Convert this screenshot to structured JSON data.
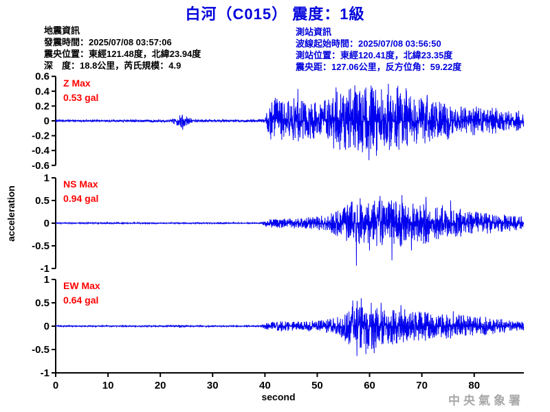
{
  "title": "白河（C015） 震度：1級",
  "colors": {
    "title": "#0000dd",
    "trace": "#0000ee",
    "max_label": "#ff0000",
    "axis": "#000000",
    "info_left": "#000000",
    "info_right": "#0000dd",
    "watermark": "#a8a8a8"
  },
  "event_info": {
    "heading": "地震資訊",
    "lines": [
      "發震時間：2025/07/08 03:57:06",
      "震央位置：東經121.48度，北緯23.94度",
      "深　度：18.8公里，芮氏規模：4.9"
    ]
  },
  "station_info": {
    "heading": "測站資訊",
    "lines": [
      "波線起始時間：2025/07/08 03:56:50",
      "測站位置：東經120.41度，北緯23.35度",
      "震央距：127.06公里，反方位角：59.22度"
    ]
  },
  "watermark": "中央氣象署",
  "chart_data": {
    "type": "line",
    "title": "白河（C015） 震度：1級",
    "xlabel": "second",
    "ylabel": "acceleration",
    "x_range": [
      0,
      89.5
    ],
    "x_ticks": [
      0,
      10,
      20,
      30,
      40,
      50,
      60,
      70,
      80
    ],
    "grid": false,
    "series": [
      {
        "name": "Z",
        "max_label": "Z Max",
        "max_value_label": "0.53 gal",
        "max_gal": 0.53,
        "ylim": [
          -0.6,
          0.6
        ],
        "y_ticks": [
          0.6,
          0.4,
          0.2,
          0,
          -0.2,
          -0.4,
          -0.6
        ],
        "envelope": [
          [
            0,
            0.013
          ],
          [
            5,
            0.016
          ],
          [
            10,
            0.014
          ],
          [
            15,
            0.016
          ],
          [
            22,
            0.018
          ],
          [
            23,
            0.06
          ],
          [
            24,
            0.09
          ],
          [
            25,
            0.07
          ],
          [
            26,
            0.03
          ],
          [
            27,
            0.018
          ],
          [
            32,
            0.016
          ],
          [
            38,
            0.018
          ],
          [
            40,
            0.03
          ],
          [
            40.6,
            0.2
          ],
          [
            41.5,
            0.3
          ],
          [
            43,
            0.34
          ],
          [
            44.5,
            0.28
          ],
          [
            46,
            0.32
          ],
          [
            47.5,
            0.26
          ],
          [
            49,
            0.3
          ],
          [
            50.5,
            0.26
          ],
          [
            52,
            0.3
          ],
          [
            53,
            0.38
          ],
          [
            54,
            0.42
          ],
          [
            55,
            0.38
          ],
          [
            56,
            0.44
          ],
          [
            57,
            0.48
          ],
          [
            58,
            0.42
          ],
          [
            59,
            0.46
          ],
          [
            60,
            0.5
          ],
          [
            61,
            0.42
          ],
          [
            62,
            0.46
          ],
          [
            63,
            0.38
          ],
          [
            64,
            0.44
          ],
          [
            65,
            0.48
          ],
          [
            66,
            0.4
          ],
          [
            67,
            0.42
          ],
          [
            68,
            0.32
          ],
          [
            69,
            0.34
          ],
          [
            70,
            0.3
          ],
          [
            71,
            0.32
          ],
          [
            72,
            0.26
          ],
          [
            73,
            0.28
          ],
          [
            74,
            0.24
          ],
          [
            75,
            0.26
          ],
          [
            76,
            0.2
          ],
          [
            77,
            0.22
          ],
          [
            78,
            0.19
          ],
          [
            80,
            0.2
          ],
          [
            82,
            0.17
          ],
          [
            84,
            0.18
          ],
          [
            86,
            0.14
          ],
          [
            88,
            0.15
          ],
          [
            89.5,
            0.13
          ]
        ],
        "spikes": [
          [
            24.3,
            -0.12
          ],
          [
            46.3,
            0.43
          ],
          [
            53.6,
            0.45
          ],
          [
            57.2,
            0.48
          ],
          [
            59.9,
            -0.53
          ],
          [
            61.3,
            -0.47
          ],
          [
            63.6,
            0.5
          ],
          [
            65.4,
            0.47
          ],
          [
            67.0,
            0.44
          ],
          [
            71.0,
            0.35
          ]
        ]
      },
      {
        "name": "NS",
        "max_label": "NS Max",
        "max_value_label": "0.94 gal",
        "max_gal": 0.94,
        "ylim": [
          -1,
          1
        ],
        "y_ticks": [
          1,
          0.5,
          0,
          -0.5,
          -1
        ],
        "envelope": [
          [
            0,
            0.012
          ],
          [
            10,
            0.014
          ],
          [
            20,
            0.012
          ],
          [
            30,
            0.014
          ],
          [
            39,
            0.014
          ],
          [
            40,
            0.07
          ],
          [
            41,
            0.1
          ],
          [
            42,
            0.12
          ],
          [
            43,
            0.1
          ],
          [
            44,
            0.12
          ],
          [
            45,
            0.11
          ],
          [
            46,
            0.13
          ],
          [
            47,
            0.12
          ],
          [
            48,
            0.13
          ],
          [
            49,
            0.14
          ],
          [
            50,
            0.15
          ],
          [
            51,
            0.17
          ],
          [
            52,
            0.2
          ],
          [
            53,
            0.24
          ],
          [
            54,
            0.3
          ],
          [
            55,
            0.34
          ],
          [
            56,
            0.44
          ],
          [
            57,
            0.52
          ],
          [
            58,
            0.48
          ],
          [
            59,
            0.44
          ],
          [
            60,
            0.5
          ],
          [
            61,
            0.52
          ],
          [
            62,
            0.56
          ],
          [
            63,
            0.48
          ],
          [
            64,
            0.52
          ],
          [
            65,
            0.5
          ],
          [
            66,
            0.52
          ],
          [
            67,
            0.44
          ],
          [
            68,
            0.48
          ],
          [
            69,
            0.4
          ],
          [
            70,
            0.44
          ],
          [
            71,
            0.48
          ],
          [
            72,
            0.4
          ],
          [
            73,
            0.36
          ],
          [
            74,
            0.4
          ],
          [
            75,
            0.36
          ],
          [
            76,
            0.3
          ],
          [
            77,
            0.34
          ],
          [
            78,
            0.3
          ],
          [
            79,
            0.28
          ],
          [
            80,
            0.26
          ],
          [
            82,
            0.24
          ],
          [
            84,
            0.22
          ],
          [
            86,
            0.2
          ],
          [
            88,
            0.17
          ],
          [
            89.5,
            0.16
          ]
        ],
        "spikes": [
          [
            57.5,
            -0.94
          ],
          [
            58.2,
            0.55
          ],
          [
            60.0,
            -0.6
          ],
          [
            62.0,
            0.6
          ],
          [
            64.3,
            -0.82
          ],
          [
            66.2,
            0.62
          ],
          [
            68.0,
            -0.6
          ],
          [
            70.8,
            0.58
          ],
          [
            75.5,
            0.5
          ]
        ]
      },
      {
        "name": "EW",
        "max_label": "EW Max",
        "max_value_label": "0.64 gal",
        "max_gal": 0.64,
        "ylim": [
          -1,
          1
        ],
        "y_ticks": [
          1,
          0.5,
          0,
          -0.5,
          -1
        ],
        "envelope": [
          [
            0,
            0.012
          ],
          [
            10,
            0.013
          ],
          [
            20,
            0.012
          ],
          [
            23,
            0.025
          ],
          [
            24,
            0.03
          ],
          [
            25,
            0.02
          ],
          [
            26,
            0.013
          ],
          [
            35,
            0.014
          ],
          [
            39,
            0.014
          ],
          [
            40,
            0.06
          ],
          [
            41,
            0.09
          ],
          [
            42,
            0.1
          ],
          [
            43,
            0.11
          ],
          [
            44,
            0.12
          ],
          [
            45,
            0.1
          ],
          [
            46,
            0.11
          ],
          [
            47,
            0.1
          ],
          [
            48,
            0.12
          ],
          [
            49,
            0.12
          ],
          [
            50,
            0.13
          ],
          [
            51,
            0.14
          ],
          [
            52,
            0.15
          ],
          [
            53,
            0.17
          ],
          [
            54,
            0.2
          ],
          [
            55,
            0.28
          ],
          [
            56,
            0.42
          ],
          [
            57,
            0.52
          ],
          [
            58,
            0.56
          ],
          [
            59,
            0.48
          ],
          [
            60,
            0.52
          ],
          [
            61,
            0.48
          ],
          [
            62,
            0.42
          ],
          [
            63,
            0.38
          ],
          [
            64,
            0.42
          ],
          [
            65,
            0.38
          ],
          [
            66,
            0.34
          ],
          [
            67,
            0.38
          ],
          [
            68,
            0.34
          ],
          [
            69,
            0.3
          ],
          [
            70,
            0.34
          ],
          [
            71,
            0.3
          ],
          [
            72,
            0.27
          ],
          [
            73,
            0.3
          ],
          [
            74,
            0.25
          ],
          [
            75,
            0.28
          ],
          [
            76,
            0.27
          ],
          [
            77,
            0.24
          ],
          [
            78,
            0.24
          ],
          [
            80,
            0.2
          ],
          [
            82,
            0.21
          ],
          [
            84,
            0.17
          ],
          [
            86,
            0.15
          ],
          [
            88,
            0.13
          ],
          [
            89.5,
            0.12
          ]
        ],
        "spikes": [
          [
            56.8,
            0.55
          ],
          [
            57.6,
            -0.64
          ],
          [
            58.4,
            0.6
          ],
          [
            59.3,
            -0.6
          ],
          [
            60.9,
            -0.58
          ],
          [
            62.2,
            0.5
          ],
          [
            66.0,
            0.45
          ],
          [
            76.0,
            0.32
          ]
        ]
      }
    ]
  }
}
